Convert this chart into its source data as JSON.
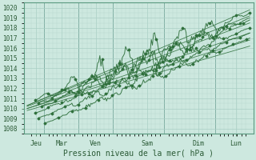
{
  "title": "",
  "xlabel": "Pression niveau de la mer( hPa )",
  "ylabel": "",
  "bg_color": "#cde8df",
  "grid_major_color": "#aacfc5",
  "grid_minor_color": "#b8d8d0",
  "line_color": "#2d6e3a",
  "x_labels": [
    "Jeu",
    "Mar",
    "Ven",
    "Sam",
    "Dim",
    "Lun"
  ],
  "ylim": [
    1007.5,
    1020.5
  ],
  "xlim": [
    -0.1,
    6.6
  ],
  "yticks": [
    1008,
    1009,
    1010,
    1011,
    1012,
    1013,
    1014,
    1015,
    1016,
    1017,
    1018,
    1019,
    1020
  ],
  "num_points": 200,
  "seed": 99,
  "figsize": [
    3.2,
    2.0
  ],
  "dpi": 100
}
